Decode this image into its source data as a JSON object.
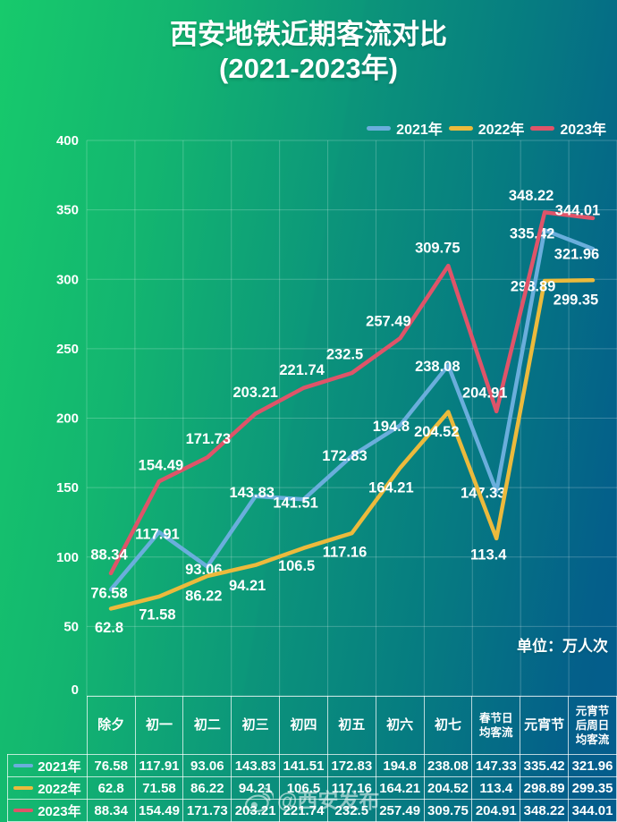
{
  "title": {
    "line1": "西安地铁近期客流对比",
    "line2": "(2021-2023年)"
  },
  "unit_label": "单位：万人次",
  "watermark": {
    "text": "@西安发布",
    "icon": "weibo-icon"
  },
  "colors": {
    "background_start": "#17ca6c",
    "background_end": "#035c8d",
    "grid": "rgba(255,255,255,0.22)",
    "text": "#ffffff"
  },
  "chart_data": {
    "type": "line",
    "title": "西安地铁近期客流对比 (2021-2023年)",
    "unit": "万人次",
    "categories": [
      "除夕",
      "初一",
      "初二",
      "初三",
      "初四",
      "初五",
      "初六",
      "初七",
      "春节日均客流",
      "元宵节",
      "元宵节后周日均客流"
    ],
    "series": [
      {
        "name": "2021年",
        "color": "#6aaedc",
        "values": [
          76.58,
          117.91,
          93.06,
          143.83,
          141.51,
          172.83,
          194.8,
          238.08,
          147.33,
          335.42,
          321.96
        ]
      },
      {
        "name": "2022年",
        "color": "#ecba3c",
        "values": [
          62.8,
          71.58,
          86.22,
          94.21,
          106.5,
          117.16,
          164.21,
          204.52,
          113.4,
          298.89,
          299.35
        ]
      },
      {
        "name": "2023年",
        "color": "#df5469",
        "values": [
          88.34,
          154.49,
          171.73,
          203.21,
          221.74,
          232.5,
          257.49,
          309.75,
          204.91,
          348.22,
          344.01
        ]
      }
    ],
    "ylim": [
      0,
      400
    ],
    "ytick_step": 50,
    "grid": true,
    "legend_position": "top-right",
    "data_labels": true
  }
}
